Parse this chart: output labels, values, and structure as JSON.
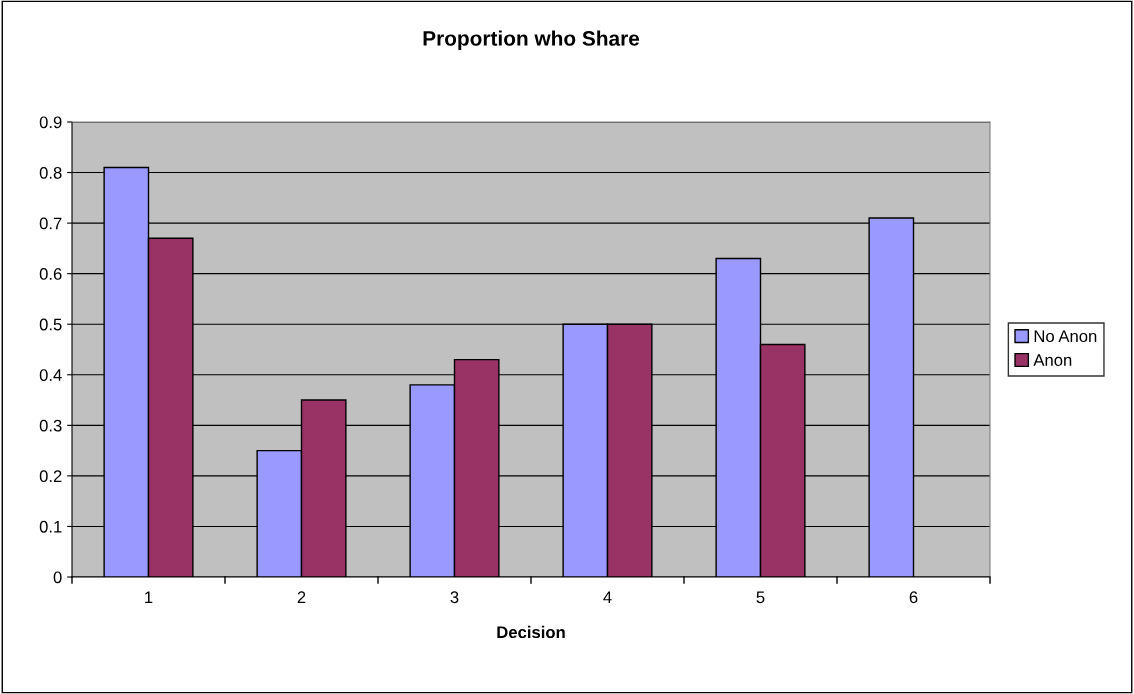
{
  "chart_data": {
    "type": "bar",
    "title": "Proportion who Share",
    "xlabel": "Decision",
    "categories": [
      "1",
      "2",
      "3",
      "4",
      "5",
      "6"
    ],
    "series": [
      {
        "name": "No Anon",
        "color": "#9999ff",
        "values": [
          0.81,
          0.25,
          0.38,
          0.5,
          0.63,
          0.71
        ]
      },
      {
        "name": "Anon",
        "color": "#993366",
        "values": [
          0.67,
          0.35,
          0.43,
          0.5,
          0.46,
          null
        ]
      }
    ],
    "ylim": [
      0,
      0.9
    ],
    "yticks": [
      {
        "value": 0,
        "label": "0"
      },
      0.1,
      0.2,
      0.3,
      0.4,
      0.5,
      0.6,
      0.7,
      0.8,
      0.9
    ],
    "grid": "y",
    "legend": "right"
  }
}
